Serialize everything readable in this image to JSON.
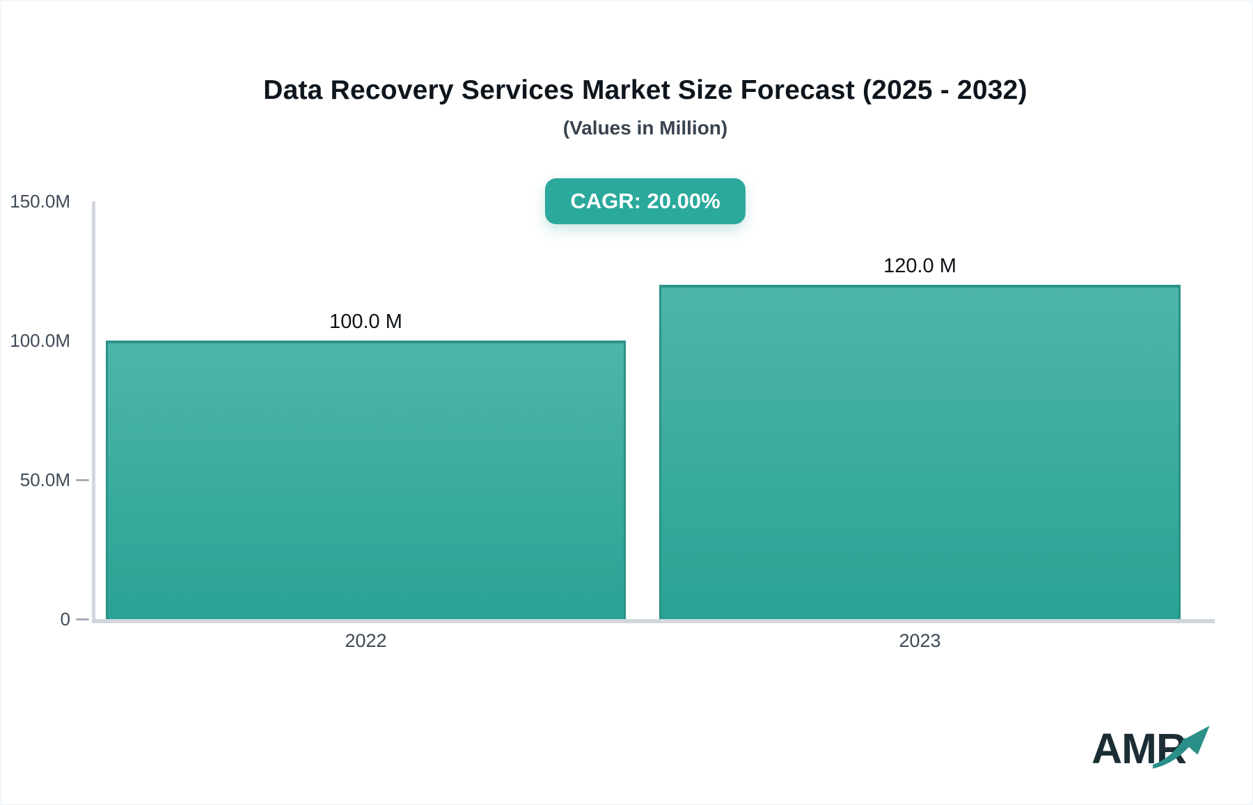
{
  "page": {
    "background": "#ffffff",
    "border_color": "#f3f6f9"
  },
  "header": {
    "title": "Data Recovery Services Market Size Forecast (2025 - 2032)",
    "subtitle": "(Values in Million)"
  },
  "badge": {
    "label": "CAGR: 20.00%",
    "bg_color": "#2ba99c",
    "text_color": "#ffffff"
  },
  "chart_data": {
    "type": "bar",
    "title": "Data Recovery Services Market Size Forecast (2025 - 2032)",
    "subtitle": "(Values in Million)",
    "unit": "Million",
    "categories": [
      "2022",
      "2023"
    ],
    "values": [
      100.0,
      120.0
    ],
    "value_labels": [
      "100.0 M",
      "120.0 M"
    ],
    "cagr": "CAGR: 20.00%",
    "ylim": [
      0,
      150
    ],
    "yticks": [
      {
        "label": "150.0M",
        "value": 150,
        "dash": false
      },
      {
        "label": "100.0M",
        "value": 100,
        "dash": false
      },
      {
        "label": "50.0M",
        "value": 50,
        "dash": true
      },
      {
        "label": "0",
        "value": 0,
        "dash": true
      }
    ],
    "grid": false,
    "legend": false,
    "bar_gradient_top": "#4eb5a9",
    "bar_gradient_bottom": "#29a295",
    "bar_border_color": "#2b9288",
    "axis_color": "#d2d7dd",
    "tick_color": "#a7adb6",
    "label_color": "#3f4a57"
  },
  "logo": {
    "text": "AMR",
    "text_color": "#1c2d35",
    "arrow_color": "#2a8f88"
  }
}
